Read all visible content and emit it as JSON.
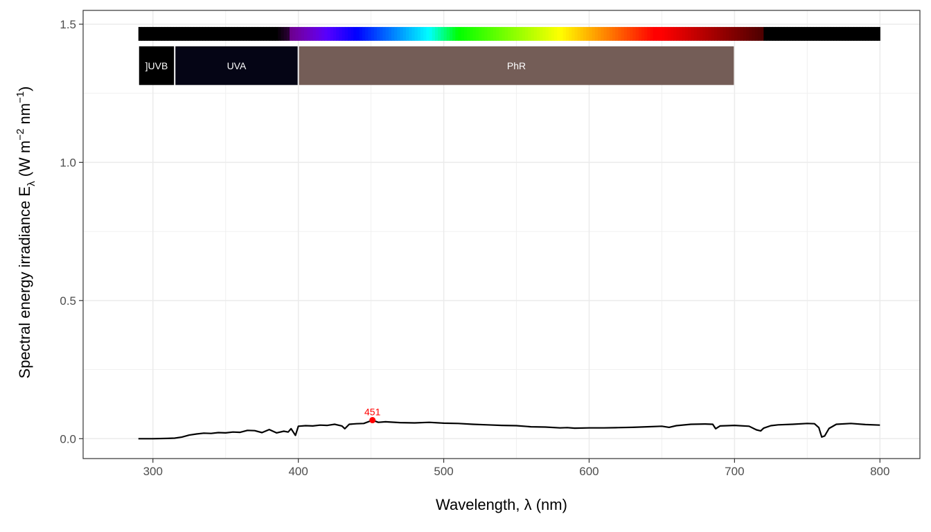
{
  "chart_data": {
    "type": "line",
    "xlabel": "Wavelength, λ (nm)",
    "ylabel": {
      "prefix": "Spectral  energy  irradiance  E",
      "subscript": "λ",
      "units_open": "  (W m",
      "exp1": "−2",
      "units_mid": " nm",
      "exp2": "−1",
      "units_close": ")"
    },
    "xlim": [
      252,
      1128
    ],
    "ylim": [
      -0.072,
      1.55
    ],
    "x_ticks": [
      300,
      400,
      500,
      600,
      700,
      800
    ],
    "x_tick_labels": [
      "300",
      "400",
      "500",
      "600",
      "700",
      "800"
    ],
    "y_ticks": [
      0.0,
      0.5,
      1.0,
      1.5
    ],
    "y_tick_labels": [
      "0.0",
      "0.5",
      "1.0",
      "1.5"
    ],
    "grid": true,
    "colors": {
      "line": "#000000",
      "peak": "#ff0000",
      "wavebands": [
        "#000000",
        "#050515",
        "#745d57"
      ]
    },
    "spectrum_bar": {
      "x_range": [
        290,
        800
      ],
      "y_range": [
        1.44,
        1.49
      ]
    },
    "wavebands": [
      {
        "label": "]UVB",
        "x_range": [
          290,
          315
        ],
        "y_range": [
          1.28,
          1.42
        ],
        "color": "#000000"
      },
      {
        "label": "UVA",
        "x_range": [
          315,
          400
        ],
        "y_range": [
          1.28,
          1.42
        ],
        "color": "#050515"
      },
      {
        "label": "PhR",
        "x_range": [
          400,
          700
        ],
        "y_range": [
          1.28,
          1.42
        ],
        "color": "#745d57"
      }
    ],
    "peak": {
      "x": 451,
      "y": 0.067,
      "label": "451"
    },
    "series": [
      {
        "x": [
          290,
          300,
          310,
          315,
          320,
          325,
          330,
          335,
          340,
          345,
          350,
          355,
          360,
          365,
          370,
          375,
          380,
          385,
          390,
          393,
          395,
          398,
          400,
          405,
          410,
          415,
          420,
          425,
          430,
          432,
          435,
          440,
          445,
          451,
          455,
          460,
          470,
          480,
          490,
          500,
          510,
          520,
          530,
          540,
          550,
          560,
          570,
          580,
          585,
          590,
          600,
          610,
          620,
          630,
          640,
          650,
          655,
          660,
          670,
          680,
          685,
          687,
          690,
          700,
          710,
          715,
          718,
          720,
          725,
          730,
          740,
          750,
          755,
          758,
          760,
          762,
          765,
          770,
          780,
          790,
          800
        ],
        "y": [
          0.0,
          0.0,
          0.001,
          0.002,
          0.006,
          0.013,
          0.017,
          0.02,
          0.019,
          0.022,
          0.021,
          0.024,
          0.023,
          0.03,
          0.029,
          0.022,
          0.033,
          0.021,
          0.027,
          0.024,
          0.036,
          0.012,
          0.045,
          0.047,
          0.046,
          0.049,
          0.048,
          0.052,
          0.046,
          0.036,
          0.052,
          0.054,
          0.055,
          0.067,
          0.059,
          0.061,
          0.058,
          0.057,
          0.059,
          0.056,
          0.055,
          0.052,
          0.05,
          0.048,
          0.047,
          0.043,
          0.042,
          0.039,
          0.04,
          0.038,
          0.039,
          0.039,
          0.04,
          0.041,
          0.043,
          0.045,
          0.041,
          0.047,
          0.052,
          0.053,
          0.052,
          0.036,
          0.046,
          0.048,
          0.045,
          0.032,
          0.028,
          0.038,
          0.047,
          0.05,
          0.052,
          0.055,
          0.054,
          0.04,
          0.006,
          0.01,
          0.037,
          0.052,
          0.055,
          0.051,
          0.049
        ]
      }
    ]
  }
}
